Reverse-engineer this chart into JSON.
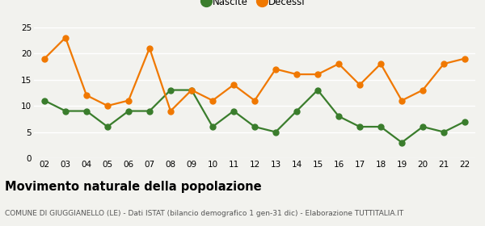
{
  "years": [
    "02",
    "03",
    "04",
    "05",
    "06",
    "07",
    "08",
    "09",
    "10",
    "11",
    "12",
    "13",
    "14",
    "15",
    "16",
    "17",
    "18",
    "19",
    "20",
    "21",
    "22"
  ],
  "nascite": [
    11,
    9,
    9,
    6,
    9,
    9,
    13,
    13,
    6,
    9,
    6,
    5,
    9,
    13,
    8,
    6,
    6,
    3,
    6,
    5,
    7
  ],
  "decessi": [
    19,
    23,
    12,
    10,
    11,
    21,
    9,
    13,
    11,
    14,
    11,
    17,
    16,
    16,
    18,
    14,
    18,
    11,
    13,
    18,
    19
  ],
  "nascite_color": "#3a7d2c",
  "decessi_color": "#f07800",
  "background_color": "#f2f2ee",
  "ylim": [
    0,
    25
  ],
  "yticks": [
    0,
    5,
    10,
    15,
    20,
    25
  ],
  "title": "Movimento naturale della popolazione",
  "subtitle": "COMUNE DI GIUGGIANELLO (LE) - Dati ISTAT (bilancio demografico 1 gen-31 dic) - Elaborazione TUTTITALIA.IT",
  "legend_nascite": "Nascite",
  "legend_decessi": "Decessi",
  "title_fontsize": 10.5,
  "subtitle_fontsize": 6.5,
  "axis_fontsize": 7.5,
  "marker_size": 5,
  "line_width": 1.6,
  "grid_color": "#ffffff",
  "grid_linewidth": 1.0
}
